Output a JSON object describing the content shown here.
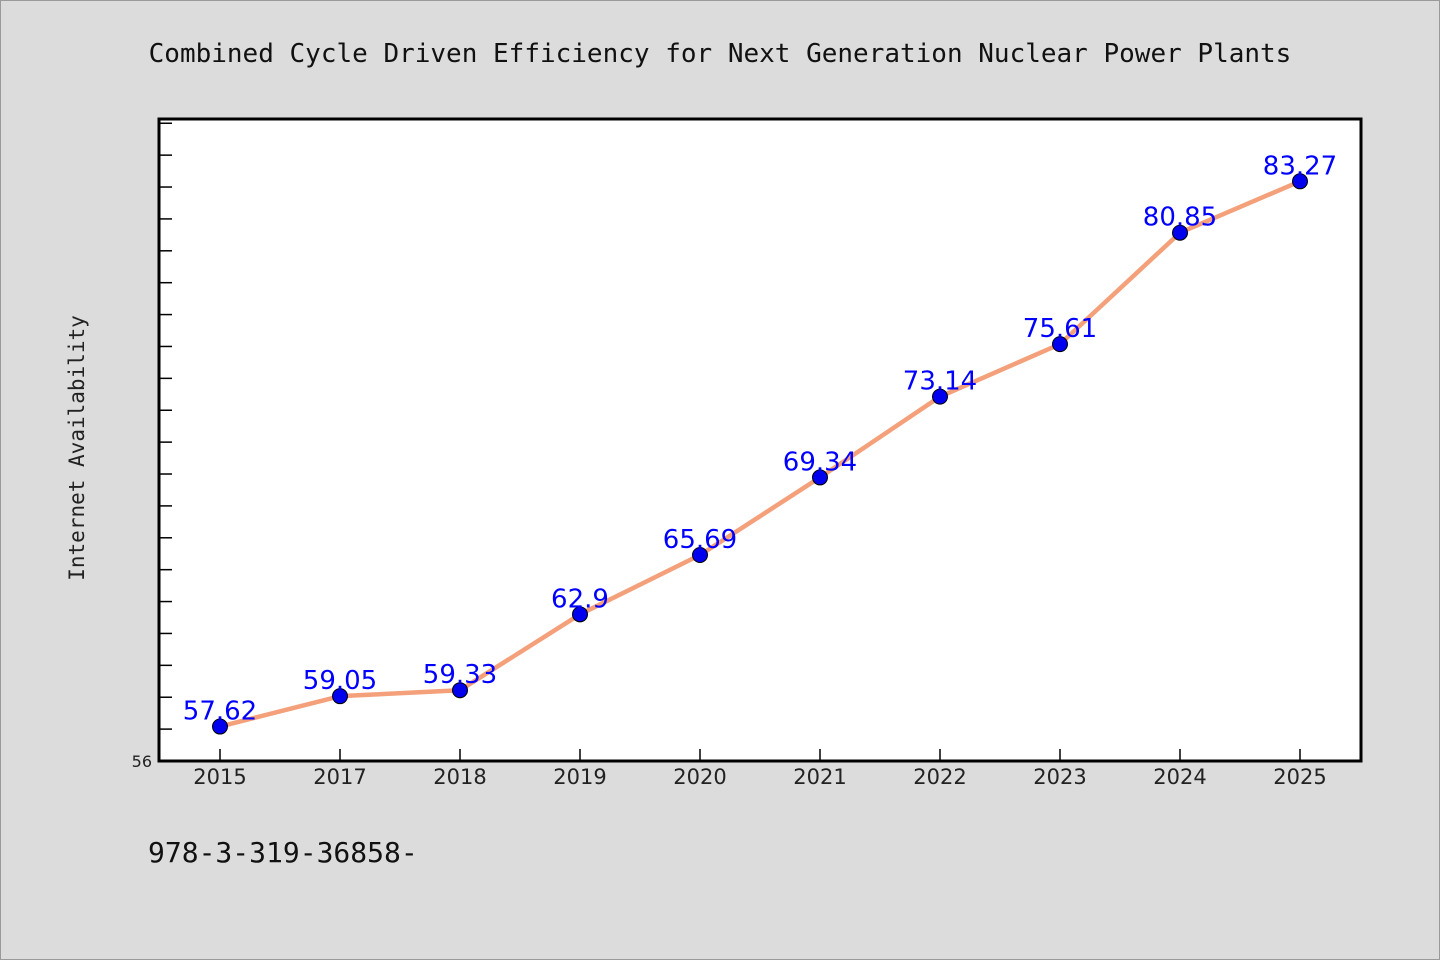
{
  "chart_data": {
    "type": "line",
    "title": "Combined Cycle Driven Efficiency for Next Generation Nuclear Power Plants",
    "xlabel": "",
    "ylabel": "Internet Availability",
    "categories": [
      "2015",
      "2017",
      "2018",
      "2019",
      "2020",
      "2021",
      "2022",
      "2023",
      "2024",
      "2025"
    ],
    "series": [
      {
        "values": [
          57.62,
          59.05,
          59.33,
          62.9,
          65.69,
          69.34,
          73.14,
          75.61,
          80.85,
          83.27
        ],
        "labels": [
          "57.62",
          "59.05",
          "59.33",
          "62.9",
          "65.69",
          "69.34",
          "73.14",
          "75.61",
          "80.85",
          "83.27"
        ],
        "line_color": "#f4a07a",
        "marker_color": "#0000ee"
      }
    ],
    "y_tick_labels": [
      "56"
    ],
    "ylim": [
      56,
      86.2
    ],
    "grid": false,
    "legend": "none"
  },
  "footer_text": "978-3-319-36858-"
}
